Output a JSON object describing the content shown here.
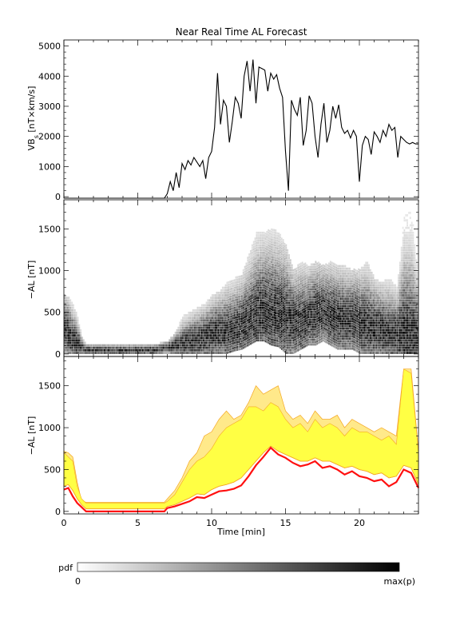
{
  "title": "Near Real Time AL Forecast",
  "colors": {
    "band_fill": "#ffff44",
    "band_edge": "#f5a623",
    "median_line": "#ff1010",
    "pdf_max": "#000000",
    "pdf_min": "#ffffff"
  },
  "colorbar": {
    "label": "pdf",
    "min_label": "0",
    "max_label": "max(p)"
  },
  "chart_data": [
    {
      "type": "line",
      "panel": "vbs",
      "title": "Near Real Time AL Forecast",
      "ylabel": "VB",
      "ylabel_sub": "s",
      "ylabel_unit": " [nT×km/s]",
      "xlim": [
        0,
        24
      ],
      "ylim": [
        -50,
        5200
      ],
      "yticks": [
        0,
        1000,
        2000,
        3000,
        4000,
        5000
      ],
      "x": [
        0,
        6.8,
        7.0,
        7.2,
        7.4,
        7.6,
        7.8,
        8.0,
        8.2,
        8.4,
        8.6,
        8.8,
        9.0,
        9.2,
        9.4,
        9.6,
        9.8,
        10.0,
        10.2,
        10.4,
        10.6,
        10.8,
        11.0,
        11.2,
        11.4,
        11.6,
        11.8,
        12.0,
        12.2,
        12.4,
        12.6,
        12.8,
        13.0,
        13.2,
        13.4,
        13.6,
        13.8,
        14.0,
        14.2,
        14.4,
        14.6,
        14.8,
        15.0,
        15.2,
        15.4,
        15.6,
        15.8,
        16.0,
        16.2,
        16.4,
        16.6,
        16.8,
        17.0,
        17.2,
        17.4,
        17.6,
        17.8,
        18.0,
        18.2,
        18.4,
        18.6,
        18.8,
        19.0,
        19.2,
        19.4,
        19.6,
        19.8,
        20.0,
        20.2,
        20.4,
        20.6,
        20.8,
        21.0,
        21.2,
        21.4,
        21.6,
        21.8,
        22.0,
        22.2,
        22.4,
        22.6,
        22.8,
        23.0,
        23.2,
        23.4,
        23.6,
        23.8,
        24.0
      ],
      "y": [
        -50,
        -50,
        100,
        500,
        200,
        800,
        300,
        1100,
        900,
        1200,
        1050,
        1300,
        1150,
        1000,
        1200,
        600,
        1300,
        1500,
        2300,
        4100,
        2400,
        3200,
        3000,
        1800,
        2500,
        3300,
        3100,
        2600,
        4000,
        4500,
        3500,
        4550,
        3100,
        4300,
        4250,
        4200,
        3500,
        4100,
        3900,
        4050,
        3600,
        3300,
        1500,
        200,
        3200,
        2900,
        2700,
        3300,
        1700,
        2200,
        3350,
        3100,
        2000,
        1300,
        2400,
        3100,
        1800,
        2200,
        3000,
        2600,
        3050,
        2300,
        2100,
        2200,
        1950,
        2200,
        2000,
        500,
        1700,
        2000,
        1900,
        1400,
        2150,
        2000,
        1800,
        2200,
        2000,
        2400,
        2200,
        2300,
        1300,
        2000,
        1900,
        1800,
        1750,
        1800,
        1750,
        1750
      ]
    },
    {
      "type": "heatmap",
      "panel": "pdf",
      "ylabel": "−AL [nT]",
      "xlim": [
        0,
        24
      ],
      "ylim": [
        -30,
        1850
      ],
      "yticks": [
        0,
        500,
        1000,
        1500
      ],
      "mode_track": {
        "x": [
          0,
          0.4,
          0.8,
          1.2,
          1.5,
          2.0,
          4.0,
          6.0,
          7.0,
          7.5,
          8.0,
          8.5,
          9.0,
          9.5,
          10.0,
          10.5,
          11.0,
          11.5,
          12.0,
          12.5,
          13.0,
          13.5,
          14.0,
          14.5,
          15.0,
          15.5,
          16.0,
          16.5,
          17.0,
          17.5,
          18.0,
          18.5,
          19.0,
          19.5,
          20.0,
          20.5,
          21.0,
          21.5,
          22.0,
          22.5,
          23.0,
          23.5,
          24.0
        ],
        "y": [
          300,
          200,
          120,
          60,
          30,
          30,
          30,
          30,
          60,
          90,
          100,
          140,
          160,
          180,
          220,
          240,
          250,
          280,
          330,
          400,
          470,
          520,
          480,
          460,
          430,
          380,
          360,
          420,
          470,
          500,
          440,
          420,
          380,
          400,
          360,
          320,
          300,
          280,
          240,
          220,
          200,
          180,
          180
        ]
      },
      "spread_upper": [
        700,
        650,
        500,
        200,
        110,
        100,
        100,
        100,
        150,
        250,
        450,
        500,
        550,
        600,
        700,
        750,
        850,
        900,
        950,
        1200,
        1450,
        1450,
        1500,
        1450,
        1300,
        1000,
        1100,
        1050,
        1100,
        1050,
        1100,
        1050,
        1050,
        1000,
        1000,
        1100,
        900,
        850,
        900,
        800,
        1700,
        1700,
        900
      ],
      "spread_lower": [
        0,
        0,
        0,
        0,
        0,
        0,
        0,
        0,
        0,
        0,
        0,
        0,
        0,
        0,
        0,
        0,
        0,
        30,
        50,
        100,
        150,
        150,
        100,
        80,
        0,
        0,
        50,
        100,
        100,
        150,
        100,
        50,
        50,
        50,
        0,
        0,
        0,
        0,
        0,
        0,
        0,
        0,
        0
      ]
    },
    {
      "type": "area",
      "panel": "forecast",
      "ylabel": "−AL [nT]",
      "xlabel": "Time [min]",
      "xlim": [
        0,
        24
      ],
      "ylim": [
        -30,
        1850
      ],
      "yticks": [
        0,
        500,
        1000,
        1500
      ],
      "xticks": [
        0,
        5,
        10,
        15,
        20
      ],
      "x": [
        0,
        0.3,
        0.6,
        0.9,
        1.2,
        1.5,
        3.0,
        5.0,
        6.8,
        7.0,
        7.5,
        8.0,
        8.5,
        9.0,
        9.5,
        10.0,
        10.5,
        11.0,
        11.5,
        12.0,
        12.5,
        13.0,
        13.5,
        14.0,
        14.5,
        15.0,
        15.5,
        16.0,
        16.5,
        17.0,
        17.5,
        18.0,
        18.5,
        19.0,
        19.5,
        20.0,
        20.5,
        21.0,
        21.5,
        22.0,
        22.5,
        23.0,
        23.5,
        24.0
      ],
      "median": [
        260,
        280,
        180,
        100,
        50,
        0,
        0,
        0,
        0,
        40,
        60,
        90,
        120,
        170,
        160,
        200,
        240,
        250,
        270,
        310,
        420,
        550,
        650,
        760,
        680,
        640,
        580,
        540,
        560,
        600,
        520,
        540,
        500,
        440,
        480,
        420,
        400,
        360,
        380,
        300,
        350,
        500,
        460,
        280
      ],
      "band_low": [
        300,
        320,
        250,
        150,
        80,
        30,
        30,
        30,
        30,
        60,
        80,
        120,
        160,
        210,
        200,
        260,
        300,
        320,
        350,
        400,
        500,
        600,
        700,
        780,
        720,
        680,
        640,
        600,
        600,
        640,
        600,
        600,
        560,
        520,
        540,
        500,
        480,
        440,
        460,
        400,
        420,
        550,
        520,
        320
      ],
      "band_high": [
        700,
        650,
        600,
        300,
        150,
        100,
        100,
        100,
        100,
        120,
        200,
        350,
        500,
        600,
        650,
        750,
        900,
        1000,
        1050,
        1100,
        1250,
        1250,
        1200,
        1300,
        1250,
        1100,
        1000,
        1050,
        950,
        1100,
        1000,
        1050,
        1000,
        900,
        1000,
        950,
        950,
        900,
        850,
        900,
        800,
        1700,
        1650,
        700
      ],
      "band_peak": [
        720,
        700,
        650,
        350,
        120,
        110,
        110,
        110,
        110,
        150,
        250,
        400,
        600,
        700,
        900,
        950,
        1100,
        1200,
        1100,
        1150,
        1300,
        1500,
        1400,
        1450,
        1500,
        1200,
        1100,
        1150,
        1050,
        1200,
        1100,
        1100,
        1150,
        1000,
        1100,
        1050,
        1000,
        950,
        1000,
        950,
        900,
        1700,
        1700,
        720
      ]
    }
  ]
}
